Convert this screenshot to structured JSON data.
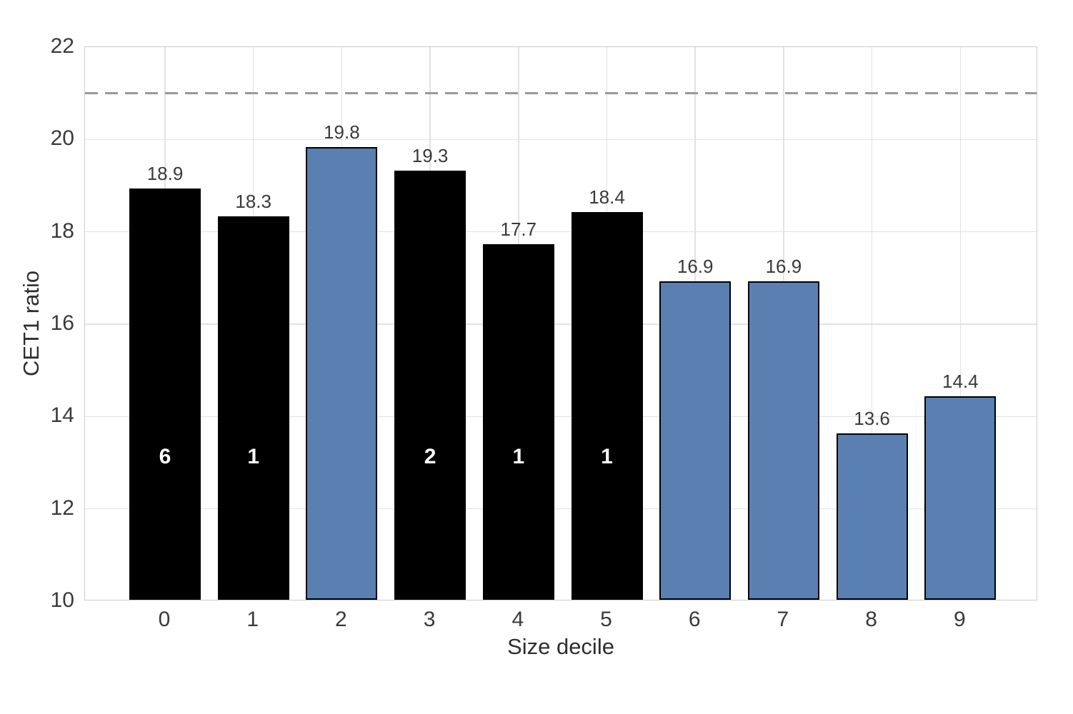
{
  "chart_data": {
    "type": "bar",
    "title": "",
    "xlabel": "Size decile",
    "ylabel": "CET1 ratio",
    "categories": [
      "0",
      "1",
      "2",
      "3",
      "4",
      "5",
      "6",
      "7",
      "8",
      "9"
    ],
    "values": [
      18.9,
      18.3,
      19.8,
      19.3,
      17.7,
      18.4,
      16.9,
      16.9,
      13.6,
      14.4
    ],
    "value_labels": [
      "18.9",
      "18.3",
      "19.8",
      "19.3",
      "17.7",
      "18.4",
      "16.9",
      "16.9",
      "13.6",
      "14.4"
    ],
    "inside_bar_labels": [
      "6",
      "1",
      "",
      "2",
      "1",
      "1",
      "",
      "",
      "",
      ""
    ],
    "bar_colors": [
      "#000000",
      "#000000",
      "#5a80b1",
      "#000000",
      "#000000",
      "#000000",
      "#5a80b1",
      "#5a80b1",
      "#5a80b1",
      "#5a80b1"
    ],
    "bar_edge_color": "#000000",
    "ylim": [
      10,
      22
    ],
    "yticks": [
      10,
      12,
      14,
      16,
      18,
      20,
      22
    ],
    "ytick_labels": [
      "10",
      "12",
      "14",
      "16",
      "18",
      "20",
      "22"
    ],
    "reference_line": {
      "y": 21,
      "style": "dashed",
      "color": "#999999"
    },
    "grid": "on",
    "legend": "none",
    "colors": {
      "black_bar": "#000000",
      "blue_bar": "#5a80b1",
      "grid": "#e2e2e2",
      "spine": "#cccccc",
      "tick_label": "#3a3a3a",
      "value_label": "#3a3a3a",
      "inside_label": "#ffffff",
      "reference_line": "#999999"
    }
  }
}
